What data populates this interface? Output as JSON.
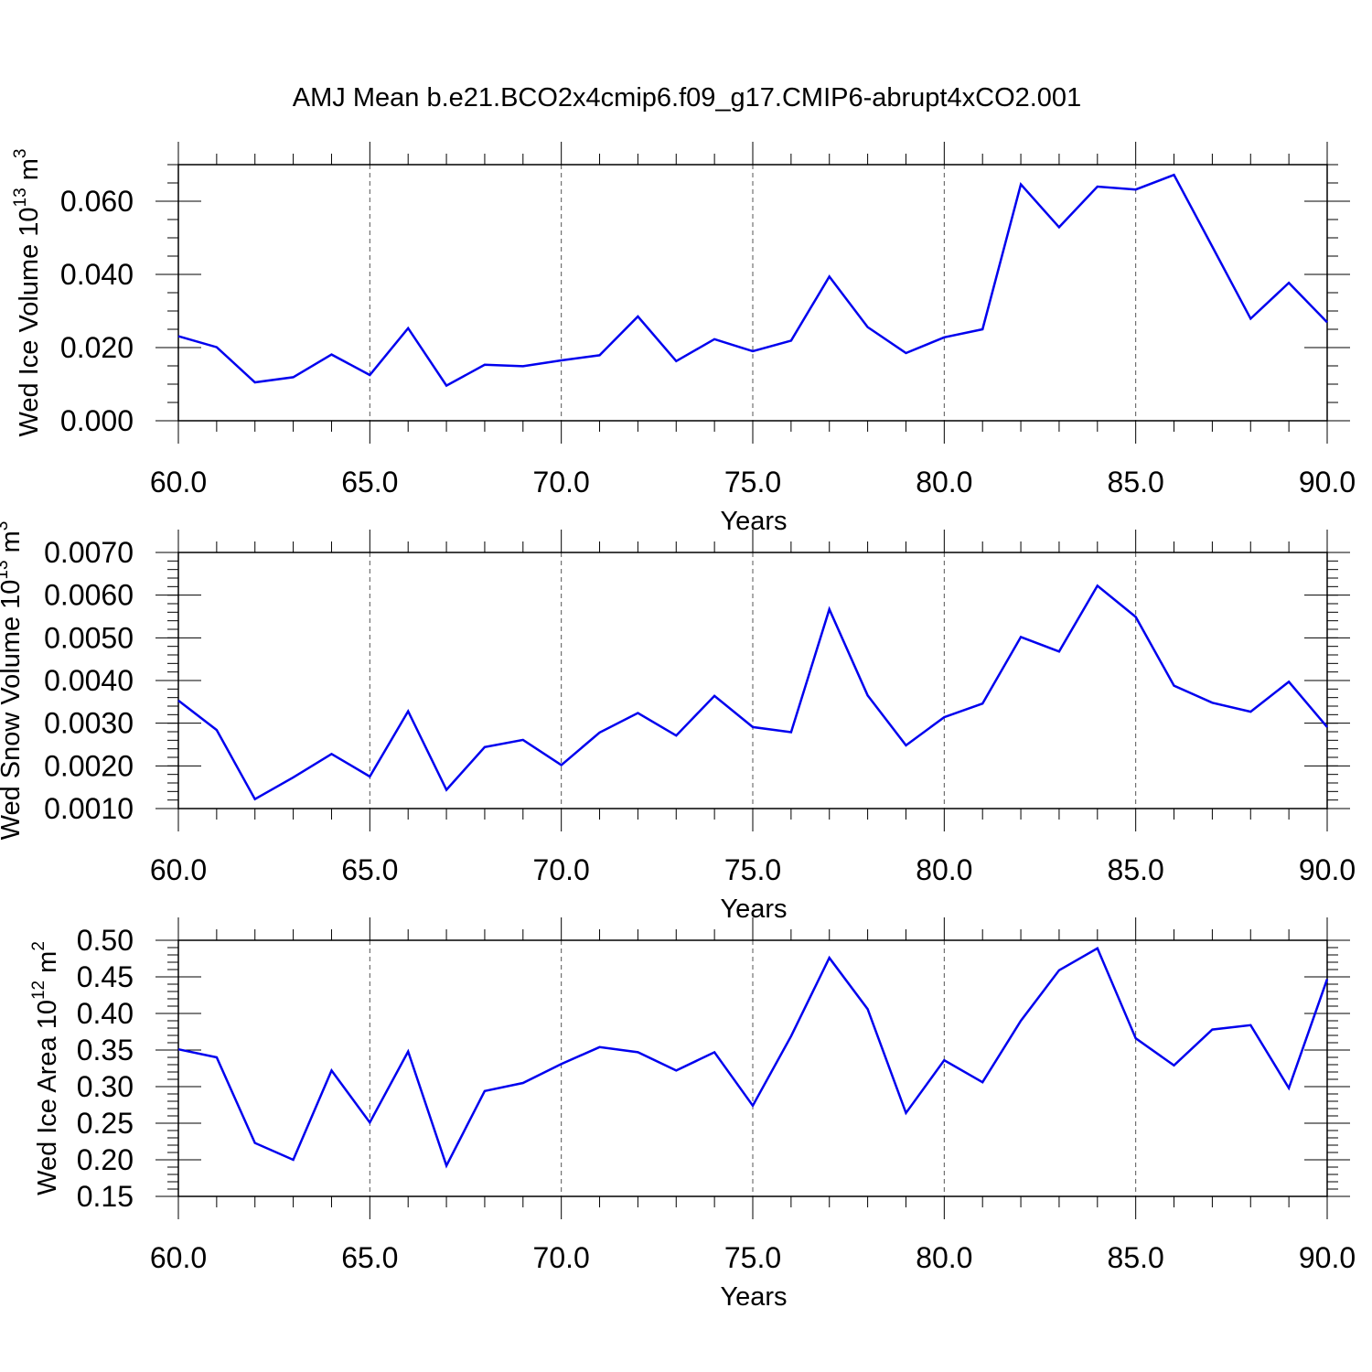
{
  "title": "AMJ Mean b.e21.BCO2x4cmip6.f09_g17.CMIP6-abrupt4xCO2.001",
  "chart_data": [
    {
      "type": "line",
      "ylabel": "Wed Ice Volume 10",
      "ylabel_exp": "13",
      "ylabel_unit": "m",
      "ylabel_unit_exp": "3",
      "xlabel": "Years",
      "xlim": [
        60,
        90
      ],
      "ylim": [
        0.0,
        0.07
      ],
      "yticks": [
        0.0,
        0.02,
        0.04,
        0.06
      ],
      "ytick_labels": [
        "0.000",
        "0.020",
        "0.040",
        "0.060"
      ],
      "yminor_step": 0.005,
      "xticks": [
        60,
        65,
        70,
        75,
        80,
        85,
        90
      ],
      "xtick_labels": [
        "60.0",
        "65.0",
        "70.0",
        "75.0",
        "80.0",
        "85.0",
        "90.0"
      ],
      "grid": "vertical dashed at major x ticks",
      "line_color": "#0000ee",
      "x": [
        60,
        61,
        62,
        63,
        64,
        65,
        66,
        67,
        68,
        69,
        70,
        71,
        72,
        73,
        74,
        75,
        76,
        77,
        78,
        79,
        80,
        81,
        82,
        83,
        84,
        85,
        86,
        87,
        88,
        89,
        90
      ],
      "values": [
        0.0231,
        0.0201,
        0.0105,
        0.0119,
        0.0181,
        0.0125,
        0.0253,
        0.0096,
        0.0153,
        0.0149,
        0.0165,
        0.0179,
        0.0285,
        0.0163,
        0.0223,
        0.019,
        0.0219,
        0.0394,
        0.0256,
        0.0185,
        0.0228,
        0.025,
        0.0646,
        0.0529,
        0.064,
        0.0632,
        0.0672,
        0.0476,
        0.0279,
        0.0377,
        0.0269
      ]
    },
    {
      "type": "line",
      "ylabel": "Wed Snow Volume 10",
      "ylabel_exp": "13",
      "ylabel_unit": "m",
      "ylabel_unit_exp": "3",
      "xlabel": "Years",
      "xlim": [
        60,
        90
      ],
      "ylim": [
        0.001,
        0.007
      ],
      "yticks": [
        0.001,
        0.002,
        0.003,
        0.004,
        0.005,
        0.006,
        0.007
      ],
      "ytick_labels": [
        "0.0010",
        "0.0020",
        "0.0030",
        "0.0040",
        "0.0050",
        "0.0060",
        "0.0070"
      ],
      "yminor_step": 0.0002,
      "xticks": [
        60,
        65,
        70,
        75,
        80,
        85,
        90
      ],
      "xtick_labels": [
        "60.0",
        "65.0",
        "70.0",
        "75.0",
        "80.0",
        "85.0",
        "90.0"
      ],
      "grid": "vertical dashed at major x ticks",
      "line_color": "#0000ee",
      "x": [
        60,
        61,
        62,
        63,
        64,
        65,
        66,
        67,
        68,
        69,
        70,
        71,
        72,
        73,
        74,
        75,
        76,
        77,
        78,
        79,
        80,
        81,
        82,
        83,
        84,
        85,
        86,
        87,
        88,
        89,
        90
      ],
      "values": [
        0.00353,
        0.00284,
        0.00122,
        0.00173,
        0.00228,
        0.00175,
        0.00328,
        0.00144,
        0.00244,
        0.00261,
        0.00202,
        0.00278,
        0.00324,
        0.00271,
        0.00364,
        0.00291,
        0.00279,
        0.00567,
        0.00365,
        0.00248,
        0.00314,
        0.00346,
        0.00502,
        0.00468,
        0.00622,
        0.00549,
        0.00388,
        0.00348,
        0.00327,
        0.00397,
        0.00291
      ]
    },
    {
      "type": "line",
      "ylabel": "Wed Ice Area 10",
      "ylabel_exp": "12",
      "ylabel_unit": "m",
      "ylabel_unit_exp": "2",
      "xlabel": "Years",
      "xlim": [
        60,
        90
      ],
      "ylim": [
        0.15,
        0.5
      ],
      "yticks": [
        0.15,
        0.2,
        0.25,
        0.3,
        0.35,
        0.4,
        0.45,
        0.5
      ],
      "ytick_labels": [
        "0.15",
        "0.20",
        "0.25",
        "0.30",
        "0.35",
        "0.40",
        "0.45",
        "0.50"
      ],
      "yminor_step": 0.01,
      "xticks": [
        60,
        65,
        70,
        75,
        80,
        85,
        90
      ],
      "xtick_labels": [
        "60.0",
        "65.0",
        "70.0",
        "75.0",
        "80.0",
        "85.0",
        "90.0"
      ],
      "grid": "vertical dashed at major x ticks",
      "line_color": "#0000ee",
      "x": [
        60,
        61,
        62,
        63,
        64,
        65,
        66,
        67,
        68,
        69,
        70,
        71,
        72,
        73,
        74,
        75,
        76,
        77,
        78,
        79,
        80,
        81,
        82,
        83,
        84,
        85,
        86,
        87,
        88,
        89,
        90
      ],
      "values": [
        0.351,
        0.34,
        0.223,
        0.2,
        0.322,
        0.251,
        0.348,
        0.192,
        0.294,
        0.305,
        0.331,
        0.354,
        0.347,
        0.322,
        0.347,
        0.274,
        0.369,
        0.476,
        0.406,
        0.264,
        0.336,
        0.306,
        0.39,
        0.459,
        0.489,
        0.366,
        0.329,
        0.378,
        0.384,
        0.298,
        0.447
      ]
    }
  ]
}
